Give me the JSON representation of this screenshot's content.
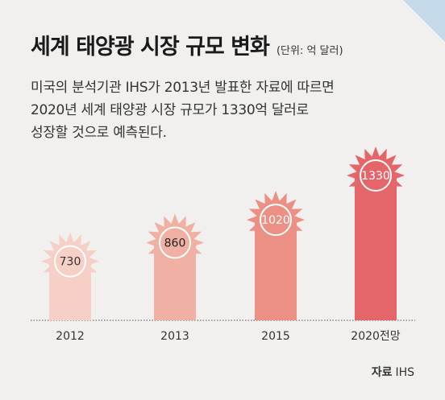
{
  "title": "세계 태양광 시장 규모 변화",
  "unit_note": "(단위: 억 달러)",
  "description_lines": [
    "미국의 분석기관 IHS가 2013년 발표한 자료에 따르면",
    "2020년 세계 태양광 시장 규모가 1330억 달러로",
    "성장할 것으로 예측된다."
  ],
  "source": {
    "label": "자료",
    "value": "IHS"
  },
  "colors": {
    "background": "#f1f0ee",
    "corner_accent": "#c4dbeb",
    "bar_colors": [
      "#f6cfc6",
      "#f1b0a4",
      "#ec8f84",
      "#e5666a"
    ]
  },
  "chart_data": {
    "type": "bar",
    "categories": [
      "2012",
      "2013",
      "2015",
      "2020전망"
    ],
    "values": [
      730,
      860,
      1020,
      1330
    ],
    "data_labels": [
      "730",
      "860",
      "1020",
      "1330"
    ],
    "marker": "sun-shaped value badge on top of each bar",
    "grid": false,
    "baseline": "dotted"
  }
}
